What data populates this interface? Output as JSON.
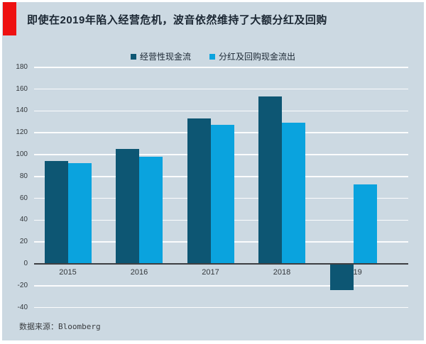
{
  "header": {
    "title": "即使在2019年陷入经营危机，波音依然维持了大额分红及回购"
  },
  "legend": {
    "items": [
      {
        "label": "经营性现金流",
        "color": "#0d5673"
      },
      {
        "label": "分红及回购现金流出",
        "color": "#0aa3de"
      }
    ]
  },
  "chart_data": {
    "type": "bar",
    "title": "即使在2019年陷入经营危机，波音依然维持了大额分红及回购",
    "categories": [
      "2015",
      "2016",
      "2017",
      "2018",
      "2019"
    ],
    "series": [
      {
        "name": "经营性现金流",
        "color": "#0d5673",
        "values": [
          94,
          105,
          133,
          153,
          -24
        ]
      },
      {
        "name": "分红及回购现金流出",
        "color": "#0aa3de",
        "values": [
          92,
          98,
          127,
          129,
          73
        ]
      }
    ],
    "xlabel": "",
    "ylabel": "",
    "ylim": [
      -40,
      180
    ],
    "ytick_step": 20,
    "grid": true,
    "legend_position": "top-center"
  },
  "footer": {
    "source": "数据来源：Bloomberg"
  },
  "colors": {
    "accent_red": "#ee1111",
    "panel_bg": "#ccd9e2",
    "series_dark": "#0d5673",
    "series_light": "#0aa3de",
    "title_text": "#1b2733",
    "axis_text": "#33373b",
    "gridline": "#ffffff",
    "zero_axis": "#3d3f42"
  }
}
